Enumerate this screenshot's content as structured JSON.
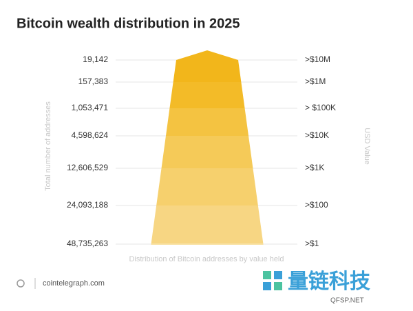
{
  "chart_data": {
    "type": "pyramid",
    "title": "Bitcoin wealth distribution in 2025",
    "y_label": "Total number of addresses",
    "y2_label": "USD Value",
    "x_label": "Distribution of Bitcoin addresses by value held",
    "categories": [
      ">$10M",
      ">$1M",
      "> $100K",
      ">$10K",
      ">$1K",
      ">$100",
      ">$1"
    ],
    "values": [
      19142,
      157383,
      1053471,
      4598624,
      12606529,
      24093188,
      48735263
    ],
    "value_labels": [
      "19,142",
      "157,383",
      "1,053,471",
      "4,598,624",
      "12,606,529",
      "24,093,188",
      "48,735,263"
    ],
    "colors": [
      "#f2b61b",
      "#f3bb28",
      "#f4c341",
      "#f5ca58",
      "#f6d06d",
      "#f7d683",
      "#f9e2a4"
    ],
    "grid": true
  },
  "footer": {
    "source": "cointelegraph.com"
  },
  "watermark": {
    "title": "量链科技",
    "subtitle": "QFSP.NET"
  }
}
